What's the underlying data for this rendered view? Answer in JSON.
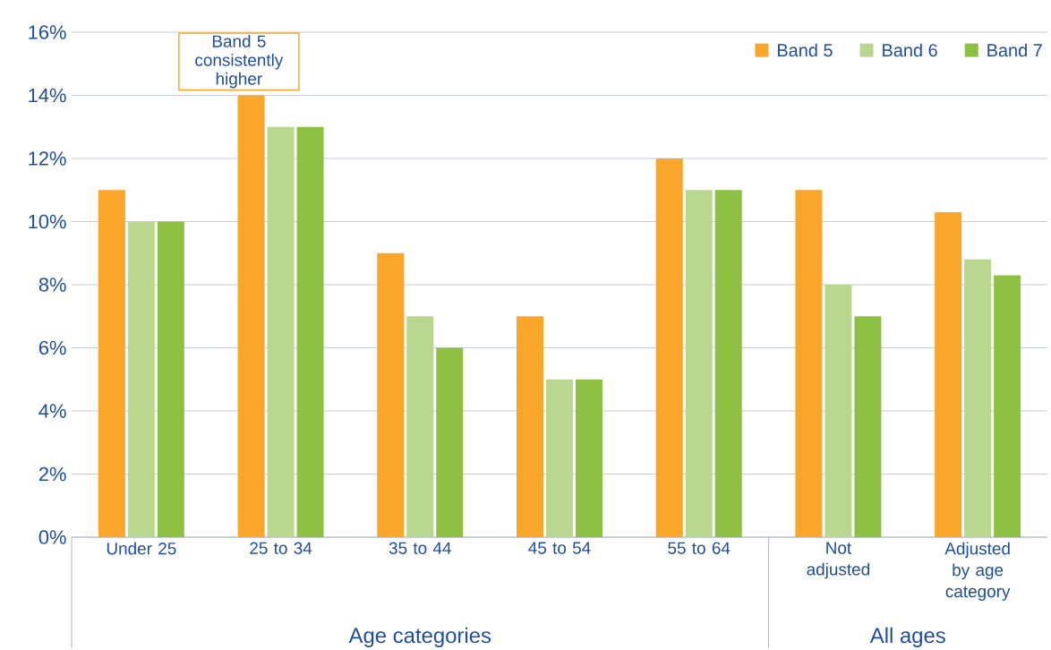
{
  "chart_data": {
    "type": "bar",
    "categories": [
      "Under 25",
      "25 to 34",
      "35 to 44",
      "45 to 54",
      "55 to 64",
      "Not adjusted",
      "Adjusted by age category"
    ],
    "series": [
      {
        "name": "Band 5",
        "color": "#f9a62b",
        "values": [
          11,
          14,
          9,
          7,
          12,
          11,
          10.3
        ]
      },
      {
        "name": "Band 6",
        "color": "#b9d78f",
        "values": [
          10,
          13,
          7,
          5,
          11,
          8,
          8.8
        ]
      },
      {
        "name": "Band 7",
        "color": "#8dc043",
        "values": [
          10,
          13,
          6,
          5,
          11,
          7,
          8.3
        ]
      }
    ],
    "ylim": [
      0,
      16
    ],
    "yticks": [
      {
        "value": 0,
        "label": "0%"
      },
      {
        "value": 2,
        "label": "2%"
      },
      {
        "value": 4,
        "label": "4%"
      },
      {
        "value": 6,
        "label": "6%"
      },
      {
        "value": 8,
        "label": "8%"
      },
      {
        "value": 10,
        "label": "10%"
      },
      {
        "value": 12,
        "label": "12%"
      },
      {
        "value": 14,
        "label": "14%"
      },
      {
        "value": 16,
        "label": "16%"
      }
    ],
    "grid": "y",
    "legend": "top right",
    "annotations": [
      "Band 5 consistently higher",
      "Age categories",
      "All ages"
    ]
  }
}
